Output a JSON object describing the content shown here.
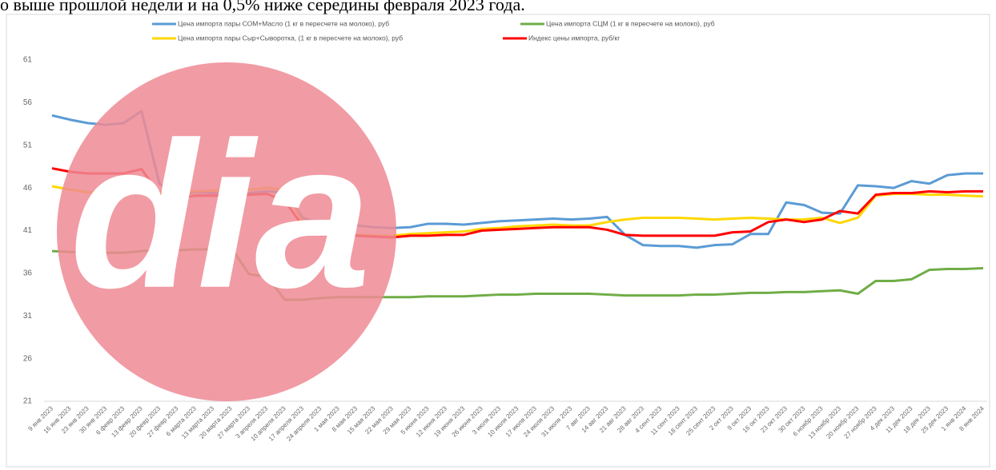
{
  "caption": "о выше прошлой недели и на 0,5% ниже середины февраля 2023 года.",
  "logo": "dia",
  "chart_data": {
    "type": "line",
    "legend": "top",
    "grid": false,
    "categories": [
      "9 янв 2023",
      "16 янв 2023",
      "23 янв 2023",
      "30 янв 2023",
      "6 февр 2023",
      "13 февр 2023",
      "20 февр 2023",
      "27 февр 2023",
      "6 марта 2023",
      "13 марта 2023",
      "20 марта 2023",
      "27 марта 2023",
      "3 апреля 2023",
      "10 апреля 2023",
      "17 апреля 2023",
      "24 апреля 2023",
      "1 мая 2023",
      "8 мая 2023",
      "15 мая 2023",
      "22 мая 2023",
      "29 мая 2023",
      "5 июня 2023",
      "12 июня 2023",
      "19 июня 2023",
      "26 июня 2023",
      "3 июля 2023",
      "10 июля 2023",
      "17 июля 2023",
      "24 июля 2023",
      "31 июля 2023",
      "7 авг 2023",
      "14 авг 2023",
      "21 авг 2023",
      "28 авг 2023",
      "4 сент 2023",
      "11 сент 2023",
      "18 сент 2023",
      "25 сент 2023",
      "2 окт 2023",
      "9 окт 2023",
      "16 окт 2023",
      "23 окт 2023",
      "30 окт 2023",
      "6 ноябр 2023",
      "13 ноябр 2023",
      "20 ноябр 2023",
      "27 ноябр 2023",
      "4 дек 2023",
      "11 дек 2023",
      "18 дек 2023",
      "25 дек 2023",
      "1 янв 2024",
      "8 янв 2024"
    ],
    "series": [
      {
        "name": "Цена импорта пары СОМ+Масло (1 кг в пересчете на молоко), руб",
        "color": "#5b9bd5",
        "values": [
          54.5,
          54.0,
          53.6,
          53.4,
          53.6,
          55.0,
          46.5,
          45.2,
          45.5,
          45.4,
          45.3,
          45.4,
          45.6,
          45.5,
          42.5,
          41.8,
          41.8,
          41.6,
          41.4,
          41.3,
          41.4,
          41.8,
          41.8,
          41.7,
          41.9,
          42.1,
          42.2,
          42.3,
          42.4,
          42.3,
          42.4,
          42.6,
          40.5,
          39.3,
          39.2,
          39.2,
          39.0,
          39.3,
          39.4,
          40.6,
          40.6,
          44.3,
          44.0,
          43.1,
          43.0,
          46.3,
          46.2,
          46.0,
          46.8,
          46.5,
          47.5,
          47.7,
          47.7
        ]
      },
      {
        "name": "Цена импорта СЦМ (1 кг в пересчете на молоко), руб",
        "color": "#70ad47",
        "values": [
          38.6,
          38.5,
          38.5,
          38.4,
          38.4,
          38.6,
          38.7,
          38.7,
          38.8,
          38.8,
          39.0,
          35.9,
          35.6,
          32.9,
          32.9,
          33.1,
          33.2,
          33.2,
          33.2,
          33.2,
          33.2,
          33.3,
          33.3,
          33.3,
          33.4,
          33.5,
          33.5,
          33.6,
          33.6,
          33.6,
          33.6,
          33.5,
          33.4,
          33.4,
          33.4,
          33.4,
          33.5,
          33.5,
          33.6,
          33.7,
          33.7,
          33.8,
          33.8,
          33.9,
          34.0,
          33.6,
          35.1,
          35.1,
          35.3,
          36.4,
          36.5,
          36.5,
          36.6
        ]
      },
      {
        "name": "Цена импорта пары Сыр+Сыворотка, (1 кг в пересчете на молоко), руб",
        "color": "#ffd700",
        "values": [
          46.2,
          45.8,
          45.5,
          45.4,
          45.4,
          45.6,
          45.5,
          45.5,
          45.6,
          45.7,
          45.8,
          45.8,
          46.0,
          45.8,
          42.0,
          40.8,
          40.6,
          40.5,
          40.4,
          40.4,
          40.6,
          40.7,
          40.8,
          40.9,
          41.2,
          41.3,
          41.5,
          41.6,
          41.7,
          41.6,
          41.6,
          42.0,
          42.3,
          42.5,
          42.5,
          42.5,
          42.4,
          42.3,
          42.4,
          42.5,
          42.4,
          42.3,
          42.3,
          42.5,
          41.9,
          42.5,
          45.1,
          45.3,
          45.3,
          45.2,
          45.2,
          45.1,
          45.0
        ]
      },
      {
        "name": "Индекс цены импорта, руб/кг",
        "color": "#ff0000",
        "values": [
          48.3,
          47.9,
          47.7,
          47.7,
          47.7,
          48.2,
          45.2,
          44.8,
          45.1,
          45.1,
          45.1,
          45.2,
          45.3,
          44.5,
          41.5,
          40.5,
          40.5,
          40.4,
          40.3,
          40.2,
          40.4,
          40.4,
          40.5,
          40.5,
          41.0,
          41.1,
          41.2,
          41.3,
          41.4,
          41.4,
          41.4,
          41.1,
          40.5,
          40.4,
          40.4,
          40.4,
          40.4,
          40.4,
          40.8,
          40.9,
          42.0,
          42.3,
          42.0,
          42.3,
          43.3,
          43.0,
          45.2,
          45.4,
          45.4,
          45.6,
          45.5,
          45.6,
          45.6
        ]
      }
    ],
    "ylim": [
      21,
      61
    ],
    "yticks": [
      21,
      26,
      31,
      36,
      41,
      46,
      51,
      56,
      61
    ]
  }
}
